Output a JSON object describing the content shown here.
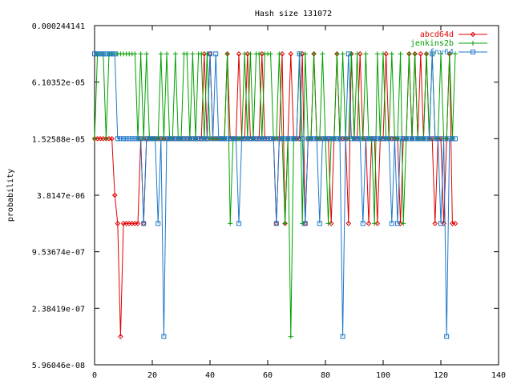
{
  "chart_data": {
    "type": "line",
    "title": "Hash size 131072",
    "xlabel": "",
    "ylabel": "probability",
    "xlim": [
      0,
      140
    ],
    "x_ticks": [
      "0",
      "20",
      "40",
      "60",
      "80",
      "100",
      "120",
      "140"
    ],
    "y_scale": "log2",
    "ylim": [
      5.96046e-08,
      0.000244141
    ],
    "y_ticks": [
      "0.000244141",
      "6.10352e-05",
      "1.52588e-05",
      "3.8147e-06",
      "9.53674e-07",
      "2.38419e-07",
      "5.96046e-08"
    ],
    "y_tick_values": [
      0.000244141,
      6.10352e-05,
      1.52588e-05,
      3.8147e-06,
      9.53674e-07,
      2.38419e-07,
      5.96046e-08
    ],
    "grid": false,
    "legend_position": "top-right",
    "series": [
      {
        "name": "abcd64d",
        "color": "#e00000",
        "marker": "diamond",
        "values": [
          1.52588e-05,
          1.52588e-05,
          1.52588e-05,
          1.52588e-05,
          1.52588e-05,
          1.52588e-05,
          1.52588e-05,
          3.8147e-06,
          1.90735e-06,
          1.19209e-07,
          1.90735e-06,
          1.90735e-06,
          1.90735e-06,
          1.90735e-06,
          1.90735e-06,
          1.90735e-06,
          1.52588e-05,
          1.90735e-06,
          1.52588e-05,
          1.52588e-05,
          1.52588e-05,
          1.52588e-05,
          1.52588e-05,
          1.52588e-05,
          1.52588e-05,
          1.52588e-05,
          1.52588e-05,
          1.52588e-05,
          1.52588e-05,
          1.52588e-05,
          1.52588e-05,
          1.52588e-05,
          1.52588e-05,
          1.52588e-05,
          1.52588e-05,
          1.52588e-05,
          1.52588e-05,
          1.52588e-05,
          0.00012207,
          1.52588e-05,
          0.00012207,
          1.52588e-05,
          1.52588e-05,
          1.52588e-05,
          1.52588e-05,
          1.52588e-05,
          0.00012207,
          1.52588e-05,
          1.52588e-05,
          1.52588e-05,
          0.00012207,
          1.52588e-05,
          1.52588e-05,
          0.00012207,
          1.52588e-05,
          1.52588e-05,
          1.52588e-05,
          1.52588e-05,
          0.00012207,
          1.52588e-05,
          1.52588e-05,
          1.52588e-05,
          1.52588e-05,
          1.90735e-06,
          1.52588e-05,
          0.00012207,
          1.90735e-06,
          1.52588e-05,
          0.00012207,
          1.52588e-05,
          1.52588e-05,
          1.52588e-05,
          0.00012207,
          1.90735e-06,
          1.52588e-05,
          1.52588e-05,
          0.00012207,
          1.52588e-05,
          1.52588e-05,
          1.52588e-05,
          1.52588e-05,
          1.52588e-05,
          1.90735e-06,
          1.52588e-05,
          0.00012207,
          1.52588e-05,
          1.52588e-05,
          1.52588e-05,
          1.90735e-06,
          0.00012207,
          1.52588e-05,
          1.52588e-05,
          0.00012207,
          1.52588e-05,
          1.52588e-05,
          1.90735e-06,
          1.52588e-05,
          1.52588e-05,
          1.90735e-06,
          1.52588e-05,
          1.52588e-05,
          0.00012207,
          1.52588e-05,
          1.52588e-05,
          1.52588e-05,
          1.52588e-05,
          1.90735e-06,
          1.52588e-05,
          1.52588e-05,
          0.00012207,
          1.52588e-05,
          0.00012207,
          1.52588e-05,
          0.00012207,
          1.52588e-05,
          0.00012207,
          1.52588e-05,
          1.52588e-05,
          1.90735e-06,
          1.52588e-05,
          1.52588e-05,
          1.90735e-06,
          1.52588e-05,
          0.00012207,
          1.90735e-06,
          1.90735e-06
        ]
      },
      {
        "name": "jenkins2b",
        "color": "#00a000",
        "marker": "plus",
        "values": [
          1.52588e-05,
          0.00012207,
          0.00012207,
          0.00012207,
          1.52588e-05,
          0.00012207,
          0.00012207,
          0.00012207,
          0.00012207,
          0.00012207,
          0.00012207,
          0.00012207,
          0.00012207,
          0.00012207,
          0.00012207,
          1.52588e-05,
          0.00012207,
          1.52588e-05,
          0.00012207,
          1.52588e-05,
          1.52588e-05,
          1.52588e-05,
          1.52588e-05,
          0.00012207,
          1.52588e-05,
          0.00012207,
          1.52588e-05,
          1.52588e-05,
          0.00012207,
          1.52588e-05,
          1.52588e-05,
          0.00012207,
          0.00012207,
          1.52588e-05,
          0.00012207,
          1.52588e-05,
          0.00012207,
          0.00012207,
          1.52588e-05,
          0.00012207,
          1.52588e-05,
          1.52588e-05,
          1.52588e-05,
          1.52588e-05,
          1.52588e-05,
          1.52588e-05,
          0.00012207,
          1.90735e-06,
          1.52588e-05,
          1.52588e-05,
          1.52588e-05,
          1.52588e-05,
          0.00012207,
          1.52588e-05,
          0.00012207,
          1.52588e-05,
          0.00012207,
          0.00012207,
          1.52588e-05,
          0.00012207,
          0.00012207,
          0.00012207,
          1.52588e-05,
          1.52588e-05,
          0.00012207,
          1.52588e-05,
          1.90735e-06,
          1.52588e-05,
          1.19209e-07,
          1.52588e-05,
          1.52588e-05,
          0.00012207,
          1.90735e-06,
          0.00012207,
          1.52588e-05,
          1.52588e-05,
          0.00012207,
          1.52588e-05,
          1.52588e-05,
          0.00012207,
          1.52588e-05,
          1.90735e-06,
          1.52588e-05,
          1.52588e-05,
          0.00012207,
          1.52588e-05,
          0.00012207,
          1.52588e-05,
          1.52588e-05,
          0.00012207,
          1.52588e-05,
          0.00012207,
          1.52588e-05,
          1.52588e-05,
          0.00012207,
          1.52588e-05,
          1.52588e-05,
          1.90735e-06,
          0.00012207,
          1.52588e-05,
          0.00012207,
          1.52588e-05,
          1.52588e-05,
          0.00012207,
          1.52588e-05,
          1.52588e-05,
          0.00012207,
          1.90735e-06,
          1.52588e-05,
          0.00012207,
          1.52588e-05,
          0.00012207,
          1.52588e-05,
          1.52588e-05,
          1.52588e-05,
          0.00012207,
          1.52588e-05,
          0.00012207,
          1.52588e-05,
          1.52588e-05,
          0.00012207,
          1.52588e-05,
          1.52588e-05,
          0.00012207,
          1.52588e-05,
          0.00012207
        ]
      },
      {
        "name": "fnv64",
        "color": "#1f78c8",
        "marker": "square",
        "values": [
          0.00012207,
          0.00012207,
          0.00012207,
          0.00012207,
          0.00012207,
          0.00012207,
          0.00012207,
          0.00012207,
          1.52588e-05,
          1.52588e-05,
          1.52588e-05,
          1.52588e-05,
          1.52588e-05,
          1.52588e-05,
          1.52588e-05,
          1.52588e-05,
          1.52588e-05,
          1.90735e-06,
          1.52588e-05,
          1.52588e-05,
          1.52588e-05,
          1.52588e-05,
          1.90735e-06,
          1.52588e-05,
          1.19209e-07,
          1.52588e-05,
          1.52588e-05,
          1.52588e-05,
          1.52588e-05,
          1.52588e-05,
          1.52588e-05,
          1.52588e-05,
          1.52588e-05,
          1.52588e-05,
          1.52588e-05,
          1.52588e-05,
          1.52588e-05,
          1.52588e-05,
          1.52588e-05,
          1.52588e-05,
          0.00012207,
          1.52588e-05,
          0.00012207,
          1.52588e-05,
          1.52588e-05,
          1.52588e-05,
          1.52588e-05,
          1.52588e-05,
          1.52588e-05,
          1.52588e-05,
          1.90735e-06,
          1.52588e-05,
          1.52588e-05,
          1.52588e-05,
          1.52588e-05,
          1.52588e-05,
          1.52588e-05,
          1.52588e-05,
          1.52588e-05,
          1.52588e-05,
          1.52588e-05,
          1.52588e-05,
          1.52588e-05,
          1.90735e-06,
          1.52588e-05,
          1.52588e-05,
          1.52588e-05,
          1.52588e-05,
          1.52588e-05,
          1.52588e-05,
          1.52588e-05,
          0.00012207,
          1.52588e-05,
          1.90735e-06,
          1.52588e-05,
          1.52588e-05,
          1.52588e-05,
          1.52588e-05,
          1.90735e-06,
          1.52588e-05,
          1.52588e-05,
          1.52588e-05,
          1.52588e-05,
          1.52588e-05,
          1.52588e-05,
          1.52588e-05,
          1.19209e-07,
          1.52588e-05,
          0.00012207,
          1.52588e-05,
          1.52588e-05,
          1.52588e-05,
          1.52588e-05,
          1.90735e-06,
          1.52588e-05,
          1.52588e-05,
          1.52588e-05,
          1.52588e-05,
          1.52588e-05,
          1.52588e-05,
          1.52588e-05,
          1.52588e-05,
          1.52588e-05,
          1.90735e-06,
          1.52588e-05,
          1.90735e-06,
          1.52588e-05,
          1.52588e-05,
          1.52588e-05,
          1.52588e-05,
          1.52588e-05,
          1.52588e-05,
          1.52588e-05,
          1.52588e-05,
          1.52588e-05,
          1.52588e-05,
          1.52588e-05,
          0.00012207,
          1.52588e-05,
          1.52588e-05,
          1.90735e-06,
          1.52588e-05,
          1.19209e-07,
          1.52588e-05,
          1.52588e-05,
          1.52588e-05
        ]
      }
    ]
  }
}
